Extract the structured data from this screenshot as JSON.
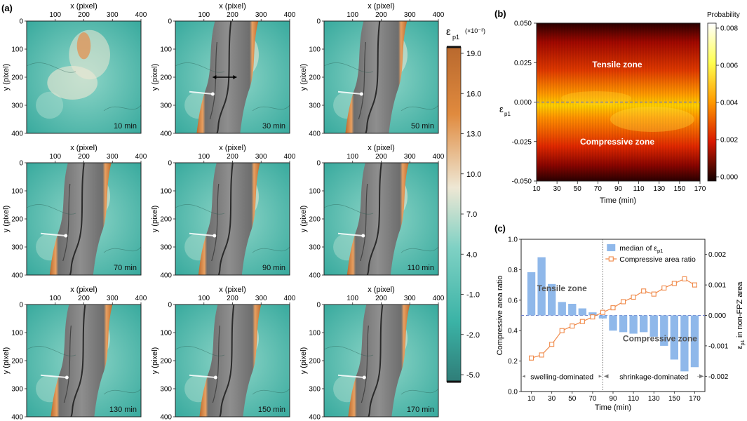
{
  "panel_labels": {
    "a": "(a)",
    "b": "(b)",
    "c": "(c)"
  },
  "map_panels": {
    "x_axis_label": "x (pixel)",
    "y_axis_label": "y (pixel)",
    "x_ticks": [
      "100",
      "200",
      "300",
      "400"
    ],
    "y_ticks": [
      "0",
      "100",
      "200",
      "300",
      "400"
    ],
    "times": [
      "10 min",
      "30 min",
      "50 min",
      "70 min",
      "90 min",
      "110 min",
      "130 min",
      "150 min",
      "170 min"
    ]
  },
  "colorbar": {
    "symbol": "ε",
    "subscript": "p1",
    "unit": "(×10⁻³)",
    "ticks": [
      "19.0",
      "16.0",
      "13.0",
      "10.0",
      "7.0",
      "4.0",
      "-1.0",
      "-2.0",
      "-5.0"
    ],
    "colors": {
      "top": "#b9692e",
      "orange": "#e08a3e",
      "light": "#eee7d4",
      "teal_light": "#7fd1c4",
      "teal": "#3bb3a6",
      "bottom": "#2f7d78"
    }
  },
  "heatmap": {
    "title_label": "Probability",
    "y_axis_symbol": "ε",
    "y_axis_subscript": "p1",
    "x_axis_label": "Time (min)",
    "y_ticks": [
      "0.050",
      "0.025",
      "0.000",
      "-0.025",
      "-0.050"
    ],
    "x_ticks": [
      "10",
      "30",
      "50",
      "70",
      "90",
      "110",
      "130",
      "150",
      "170"
    ],
    "colorbar_ticks": [
      "0.008",
      "0.006",
      "0.004",
      "0.002",
      "0.000"
    ],
    "annotations": {
      "tensile": "Tensile zone",
      "compressive": "Compressive zone"
    }
  },
  "chart_data": {
    "type": "bar",
    "x_label": "Time (min)",
    "y_left_label": "Compressive area ratio",
    "y_right_label_symbol": "ε",
    "y_right_label_subscript": "p1",
    "y_right_label_suffix": " in non-FPZ area",
    "categories": [
      10,
      20,
      30,
      40,
      50,
      60,
      70,
      80,
      90,
      100,
      110,
      120,
      130,
      140,
      150,
      160,
      170
    ],
    "x_ticks": [
      "10",
      "30",
      "50",
      "70",
      "90",
      "110",
      "130",
      "150",
      "170"
    ],
    "y_left_ticks": [
      "0.0",
      "0.2",
      "0.4",
      "0.6",
      "0.8",
      "1.0"
    ],
    "y_right_ticks": [
      "0.002",
      "0.001",
      "0.000",
      "-0.001",
      "-0.002"
    ],
    "y_left_lim": [
      0.0,
      1.0
    ],
    "y_right_lim": [
      -0.0025,
      0.0025
    ],
    "series": [
      {
        "name": "median of ε",
        "name_sub": "p1",
        "kind": "bar",
        "axis": "right",
        "values": [
          0.00142,
          0.00191,
          0.00103,
          0.00044,
          0.00038,
          0.00023,
          0.0001,
          -0.0001,
          -0.0005,
          -0.00055,
          -0.0006,
          -0.00055,
          -0.0007,
          -0.001,
          -0.00145,
          -0.00185,
          -0.0017
        ]
      },
      {
        "name": "Compressive area ratio",
        "kind": "line",
        "axis": "left",
        "values": [
          0.22,
          0.24,
          0.31,
          0.4,
          0.43,
          0.46,
          0.49,
          0.52,
          0.55,
          0.59,
          0.62,
          0.66,
          0.64,
          0.68,
          0.71,
          0.74,
          0.7
        ]
      }
    ],
    "annotations": {
      "tensile": "Tensile zone",
      "compressive": "Compressive zone",
      "left_region": "swelling-dominated",
      "right_region": "shrinkage-dominated"
    }
  }
}
